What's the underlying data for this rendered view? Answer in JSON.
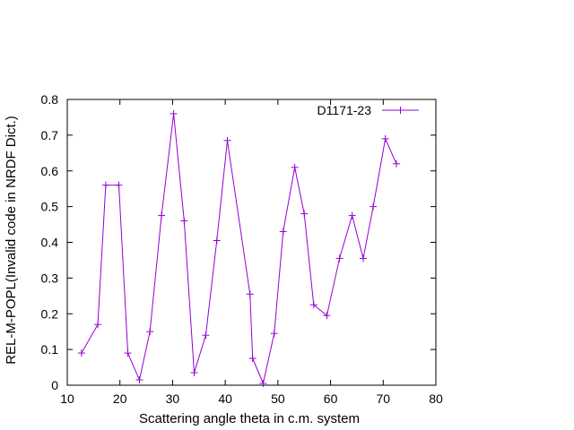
{
  "chart_data": {
    "type": "line",
    "title": "",
    "xlabel": "Scattering angle theta in c.m. system",
    "ylabel": "REL-M-POPL(Invalid code in NRDF Dict.)",
    "xlim": [
      10,
      80
    ],
    "ylim": [
      0,
      0.8
    ],
    "x_ticks": [
      "10",
      "20",
      "30",
      "40",
      "50",
      "60",
      "70",
      "80"
    ],
    "y_ticks": [
      "0",
      "0.1",
      "0.2",
      "0.3",
      "0.4",
      "0.5",
      "0.6",
      "0.7",
      "0.8"
    ],
    "x_tick_values": [
      10,
      20,
      30,
      40,
      50,
      60,
      70,
      80
    ],
    "y_tick_values": [
      0,
      0.1,
      0.2,
      0.3,
      0.4,
      0.5,
      0.6,
      0.7,
      0.8
    ],
    "grid": false,
    "legend_position": "top-right",
    "series": [
      {
        "name": "D1171-23",
        "color": "#9400d3",
        "marker": "plus",
        "x": [
          12.7,
          15.8,
          17.3,
          19.8,
          21.5,
          23.7,
          25.7,
          27.9,
          30.2,
          32.2,
          34.1,
          36.3,
          38.4,
          40.4,
          44.7,
          45.2,
          47.2,
          49.3,
          51.0,
          53.2,
          55.0,
          56.8,
          59.3,
          61.7,
          64.1,
          66.2,
          68.1,
          70.4,
          72.5
        ],
        "y": [
          0.09,
          0.17,
          0.56,
          0.56,
          0.09,
          0.015,
          0.15,
          0.475,
          0.76,
          0.46,
          0.035,
          0.14,
          0.405,
          0.685,
          0.255,
          0.075,
          0.005,
          0.145,
          0.43,
          0.61,
          0.48,
          0.225,
          0.195,
          0.355,
          0.475,
          0.355,
          0.5,
          0.69,
          0.62
        ]
      }
    ]
  }
}
